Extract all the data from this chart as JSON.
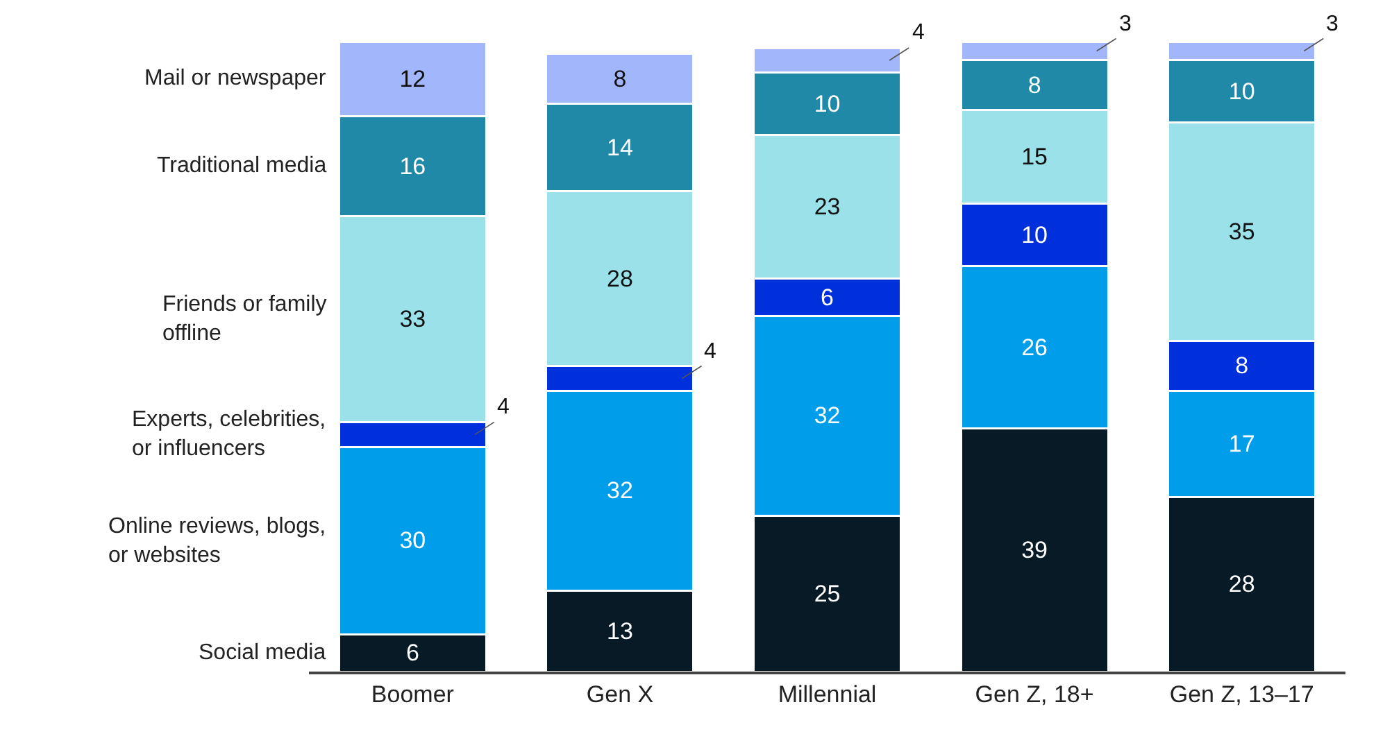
{
  "chart_data": {
    "type": "bar",
    "stacked": true,
    "data_labels": true,
    "legend": false,
    "categories": [
      "Boomer",
      "Gen X",
      "Millennial",
      "Gen Z, 18+",
      "Gen Z, 13–17"
    ],
    "series": [
      {
        "name": "Social media",
        "color": "#071a26",
        "values": [
          6,
          13,
          25,
          39,
          28
        ]
      },
      {
        "name": "Online reviews, blogs,\nor websites",
        "color": "#009eea",
        "values": [
          30,
          32,
          32,
          26,
          17
        ]
      },
      {
        "name": "Experts, celebrities,\nor influencers",
        "color": "#0030dc",
        "values": [
          4,
          4,
          6,
          10,
          8
        ]
      },
      {
        "name": "Friends or family\noffline",
        "color": "#9ae1ea",
        "values": [
          33,
          28,
          23,
          15,
          35
        ]
      },
      {
        "name": "Traditional media",
        "color": "#1f89a7",
        "values": [
          16,
          14,
          10,
          8,
          10
        ]
      },
      {
        "name": "Mail or newspaper",
        "color": "#a2b7fb",
        "values": [
          12,
          8,
          4,
          3,
          3
        ]
      }
    ]
  }
}
